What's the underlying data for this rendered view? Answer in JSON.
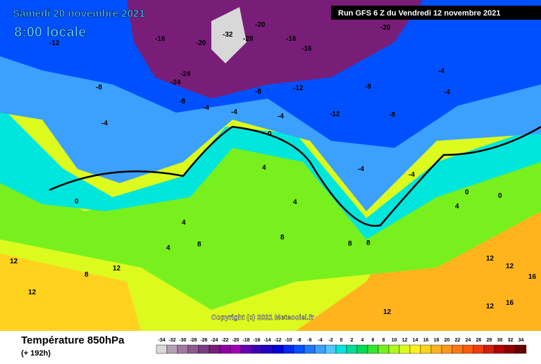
{
  "header": {
    "date": "Samedi 20 novembre 2021",
    "time": "8:00 locale",
    "run": "Run GFS 6 Z du Vendredi 12 novembre 2021"
  },
  "copyright": "Copyright (c) 2021 Meteociel.fr",
  "footer": {
    "title": "Température 850hPa",
    "lead": "(+ 192h)"
  },
  "scale": {
    "labels": [
      -34,
      -32,
      -30,
      -28,
      -26,
      -24,
      -22,
      -20,
      -18,
      -16,
      -14,
      -12,
      -10,
      -8,
      -6,
      -4,
      -2,
      0,
      2,
      4,
      6,
      8,
      10,
      12,
      14,
      16,
      18,
      20,
      22,
      24,
      26,
      28,
      30,
      32,
      34
    ],
    "colors": [
      "#d8d8d8",
      "#b4a0b4",
      "#a078a0",
      "#8c5a8c",
      "#7a3c82",
      "#781e78",
      "#8c00a0",
      "#a000b4",
      "#6400b4",
      "#3c00b4",
      "#1e00c8",
      "#0000dc",
      "#0028f0",
      "#0050ff",
      "#1e78ff",
      "#3ca0ff",
      "#50c8ff",
      "#00e6dc",
      "#00dc96",
      "#00dc50",
      "#32e632",
      "#78f01e",
      "#b4f51e",
      "#dcfa1e",
      "#fff01e",
      "#ffd21e",
      "#ffb41e",
      "#ff961e",
      "#ff7814",
      "#ff5a0a",
      "#f03c0a",
      "#d21e0a",
      "#b40000",
      "#8c0000",
      "#640000"
    ]
  },
  "map": {
    "contour_labels": [
      -12,
      -16,
      -20,
      -24,
      -24,
      -28,
      -32,
      -20,
      -16,
      -16,
      -12,
      -20,
      -8,
      -8,
      -8,
      -4,
      -4,
      -4,
      -4,
      -12,
      -8,
      -8,
      -4,
      -4,
      -4,
      -4,
      0,
      0,
      0,
      0,
      4,
      4,
      4,
      4,
      4,
      8,
      8,
      8,
      8,
      8,
      12,
      12,
      12,
      12,
      12,
      12,
      12,
      16,
      16
    ]
  }
}
